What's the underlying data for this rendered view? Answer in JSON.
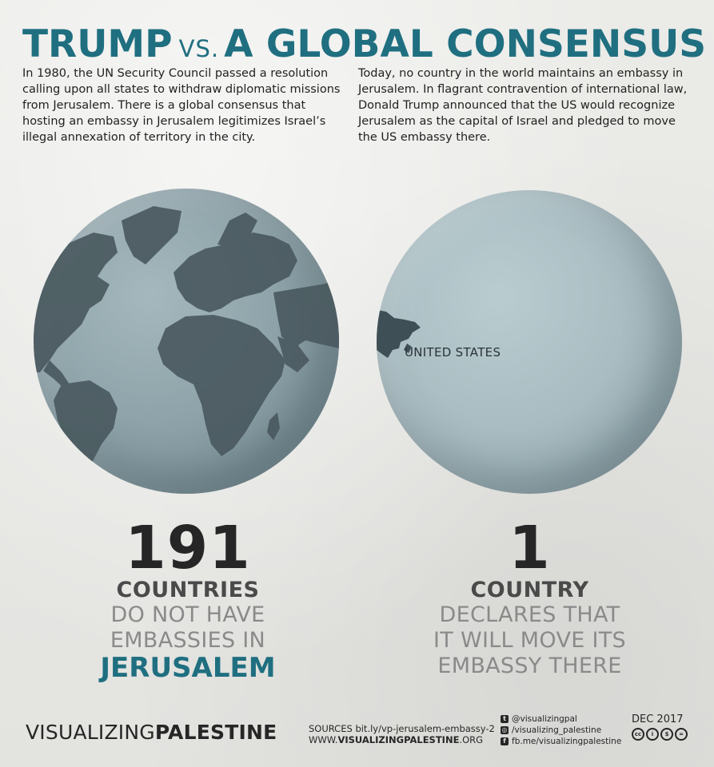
{
  "header": {
    "title_left": "TRUMP",
    "title_vs": "VS.",
    "title_right": "A GLOBAL CONSENSUS"
  },
  "intro": {
    "left": "In 1980, the UN Security Council passed a resolution calling upon all states to withdraw diplomatic missions from Jerusalem. There is a global consensus that hosting an embassy in Jerusalem legitimizes Israel’s illegal annexation of territory in the city.",
    "right": "Today, no country in the world maintains an embassy in Jerusalem. In flagrant contravention of international law, Donald Trump announced that the US would recognize Jerusalem as the capital of Israel and pledged to move the US embassy there."
  },
  "globes": {
    "us_label": "UNITED STATES"
  },
  "stats": {
    "left": {
      "number": "191",
      "unit": "COUNTRIES",
      "line1": "DO NOT HAVE",
      "line2": "EMBASSIES IN",
      "accent": "JERUSALEM"
    },
    "right": {
      "number": "1",
      "unit": "COUNTRY",
      "line1": "DECLARES THAT",
      "line2": "IT WILL MOVE ITS",
      "line3": "EMBASSY THERE"
    }
  },
  "footer": {
    "brand_light": "VISUALIZING",
    "brand_bold": "PALESTINE",
    "sources_line": "SOURCES bit.ly/vp-jerusalem-embassy-2",
    "site_prefix": "WWW.",
    "site_bold": "VISUALIZINGPALESTINE",
    "site_suffix": ".ORG",
    "twitter": "@visualizingpal",
    "instagram": "/visualizing_palestine",
    "facebook": "fb.me/visualizingpalestine",
    "date": "DEC 2017",
    "license_icons": [
      "cc-icon",
      "by-icon",
      "nc-icon",
      "nd-icon"
    ]
  },
  "colors": {
    "accent": "#1f6f80",
    "dark": "#262626",
    "muted": "#8a8a8a",
    "land": "#4a5a60"
  }
}
